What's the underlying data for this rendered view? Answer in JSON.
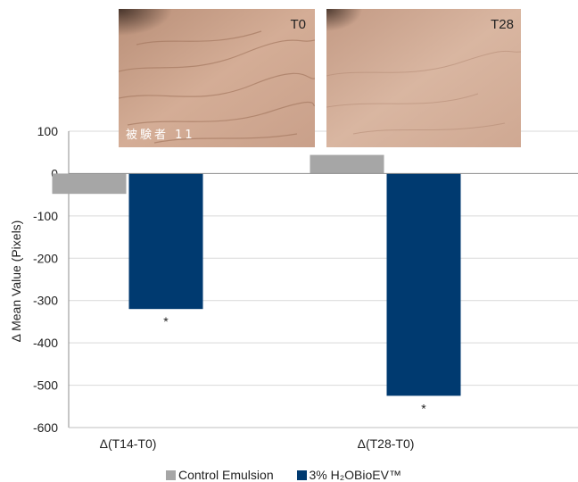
{
  "photos": [
    {
      "label": "T0",
      "subject_label": "被験者 11"
    },
    {
      "label": "T28",
      "subject_label": ""
    }
  ],
  "chart_data": {
    "type": "bar",
    "categories": [
      "Δ(T14-T0)",
      "Δ(T28-T0)"
    ],
    "series": [
      {
        "name": "Control Emulsion",
        "values": [
          -48,
          44
        ],
        "color": "#a6a6a6"
      },
      {
        "name": "3% H₂OBioEV™",
        "values": [
          -320,
          -525
        ],
        "color": "#003a70",
        "annotations": [
          "*",
          "*"
        ]
      }
    ],
    "title": "",
    "xlabel": "",
    "ylabel": "Δ Mean Value (Pixels)",
    "ylim": [
      -600,
      100
    ],
    "yticks": [
      100,
      0,
      -100,
      -200,
      -300,
      -400,
      -500,
      -600
    ],
    "grid": true,
    "legend_position": "bottom"
  }
}
